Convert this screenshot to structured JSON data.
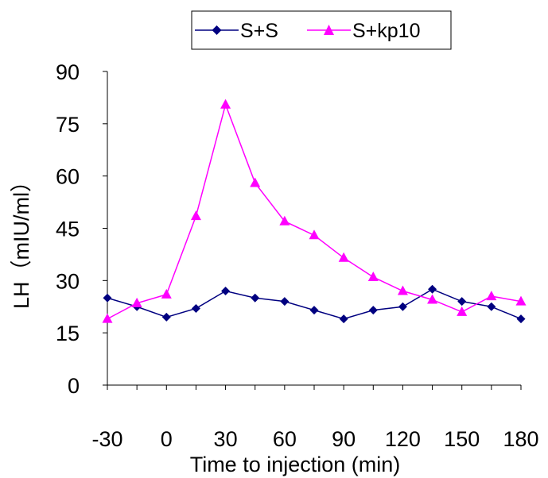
{
  "chart_data": {
    "type": "line",
    "title": "",
    "xlabel": "Time to injection (min)",
    "ylabel": "LH（mIU/ml）",
    "xlim": [
      -30,
      180
    ],
    "ylim": [
      0,
      90
    ],
    "x_ticks": [
      "-30",
      "0",
      "30",
      "60",
      "90",
      "120",
      "150",
      "180"
    ],
    "y_ticks": [
      "0",
      "15",
      "30",
      "45",
      "60",
      "75",
      "90"
    ],
    "x_tick_values": [
      -30,
      0,
      30,
      60,
      90,
      120,
      150,
      180
    ],
    "y_tick_values": [
      0,
      15,
      30,
      45,
      60,
      75,
      90
    ],
    "grid": false,
    "legend_position": "top",
    "x": [
      -30,
      -15,
      0,
      15,
      30,
      45,
      60,
      75,
      90,
      105,
      120,
      135,
      150,
      165,
      180
    ],
    "series": [
      {
        "name": "S+S",
        "color": "#000080",
        "marker": "diamond",
        "values": [
          25,
          22.5,
          19.5,
          22,
          27,
          25,
          24,
          21.5,
          19,
          21.5,
          22.5,
          27.5,
          24,
          22.5,
          19
        ]
      },
      {
        "name": "S+kp10",
        "color": "#ff00ff",
        "marker": "triangle",
        "values": [
          19,
          23.5,
          26,
          48.5,
          80.5,
          58,
          47,
          43,
          36.5,
          31,
          27,
          24.5,
          21,
          25.5,
          24
        ]
      }
    ]
  }
}
